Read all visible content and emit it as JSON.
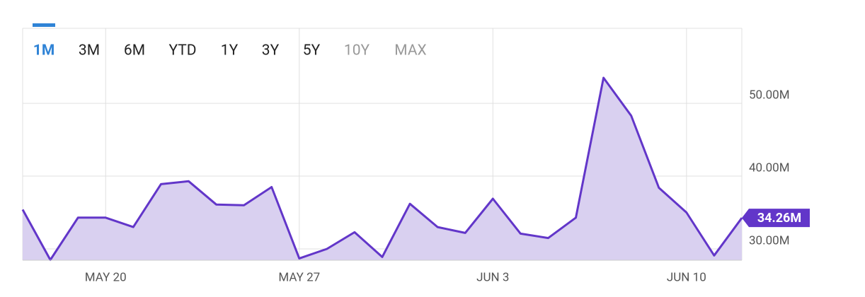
{
  "range_selector": {
    "options": [
      "1M",
      "3M",
      "6M",
      "YTD",
      "1Y",
      "3Y",
      "5Y",
      "10Y",
      "MAX"
    ],
    "selected": 0,
    "disabled": [
      7,
      8
    ]
  },
  "chart_data": {
    "type": "area",
    "categories": [
      null,
      null,
      null,
      "MAY 20",
      null,
      null,
      null,
      null,
      null,
      null,
      "MAY 27",
      null,
      null,
      null,
      null,
      null,
      null,
      "JUN 3",
      null,
      null,
      null,
      null,
      null,
      null,
      "JUN 10",
      null,
      null
    ],
    "values": [
      35.4,
      28.5,
      34.3,
      34.3,
      33.0,
      38.9,
      39.3,
      36.1,
      36.0,
      38.5,
      28.7,
      30.0,
      32.3,
      28.9,
      36.2,
      33.0,
      32.2,
      36.9,
      32.1,
      31.5,
      34.3,
      53.5,
      48.3,
      38.4,
      35.0,
      29.1,
      34.26
    ],
    "value_labels": [
      null,
      null,
      null,
      null,
      null,
      null,
      null,
      null,
      null,
      null,
      null,
      null,
      null,
      null,
      null,
      null,
      null,
      null,
      null,
      null,
      null,
      null,
      null,
      null,
      null,
      null,
      "34.26M"
    ],
    "color": "#6236c9",
    "fill": "#d9d0f0",
    "ylim": [
      28.45,
      60.3
    ],
    "yticks": [
      {
        "value": 30,
        "label": "30.00M"
      },
      {
        "value": 40,
        "label": "40.00M"
      },
      {
        "value": 50,
        "label": "50.00M"
      }
    ],
    "grid": true
  }
}
